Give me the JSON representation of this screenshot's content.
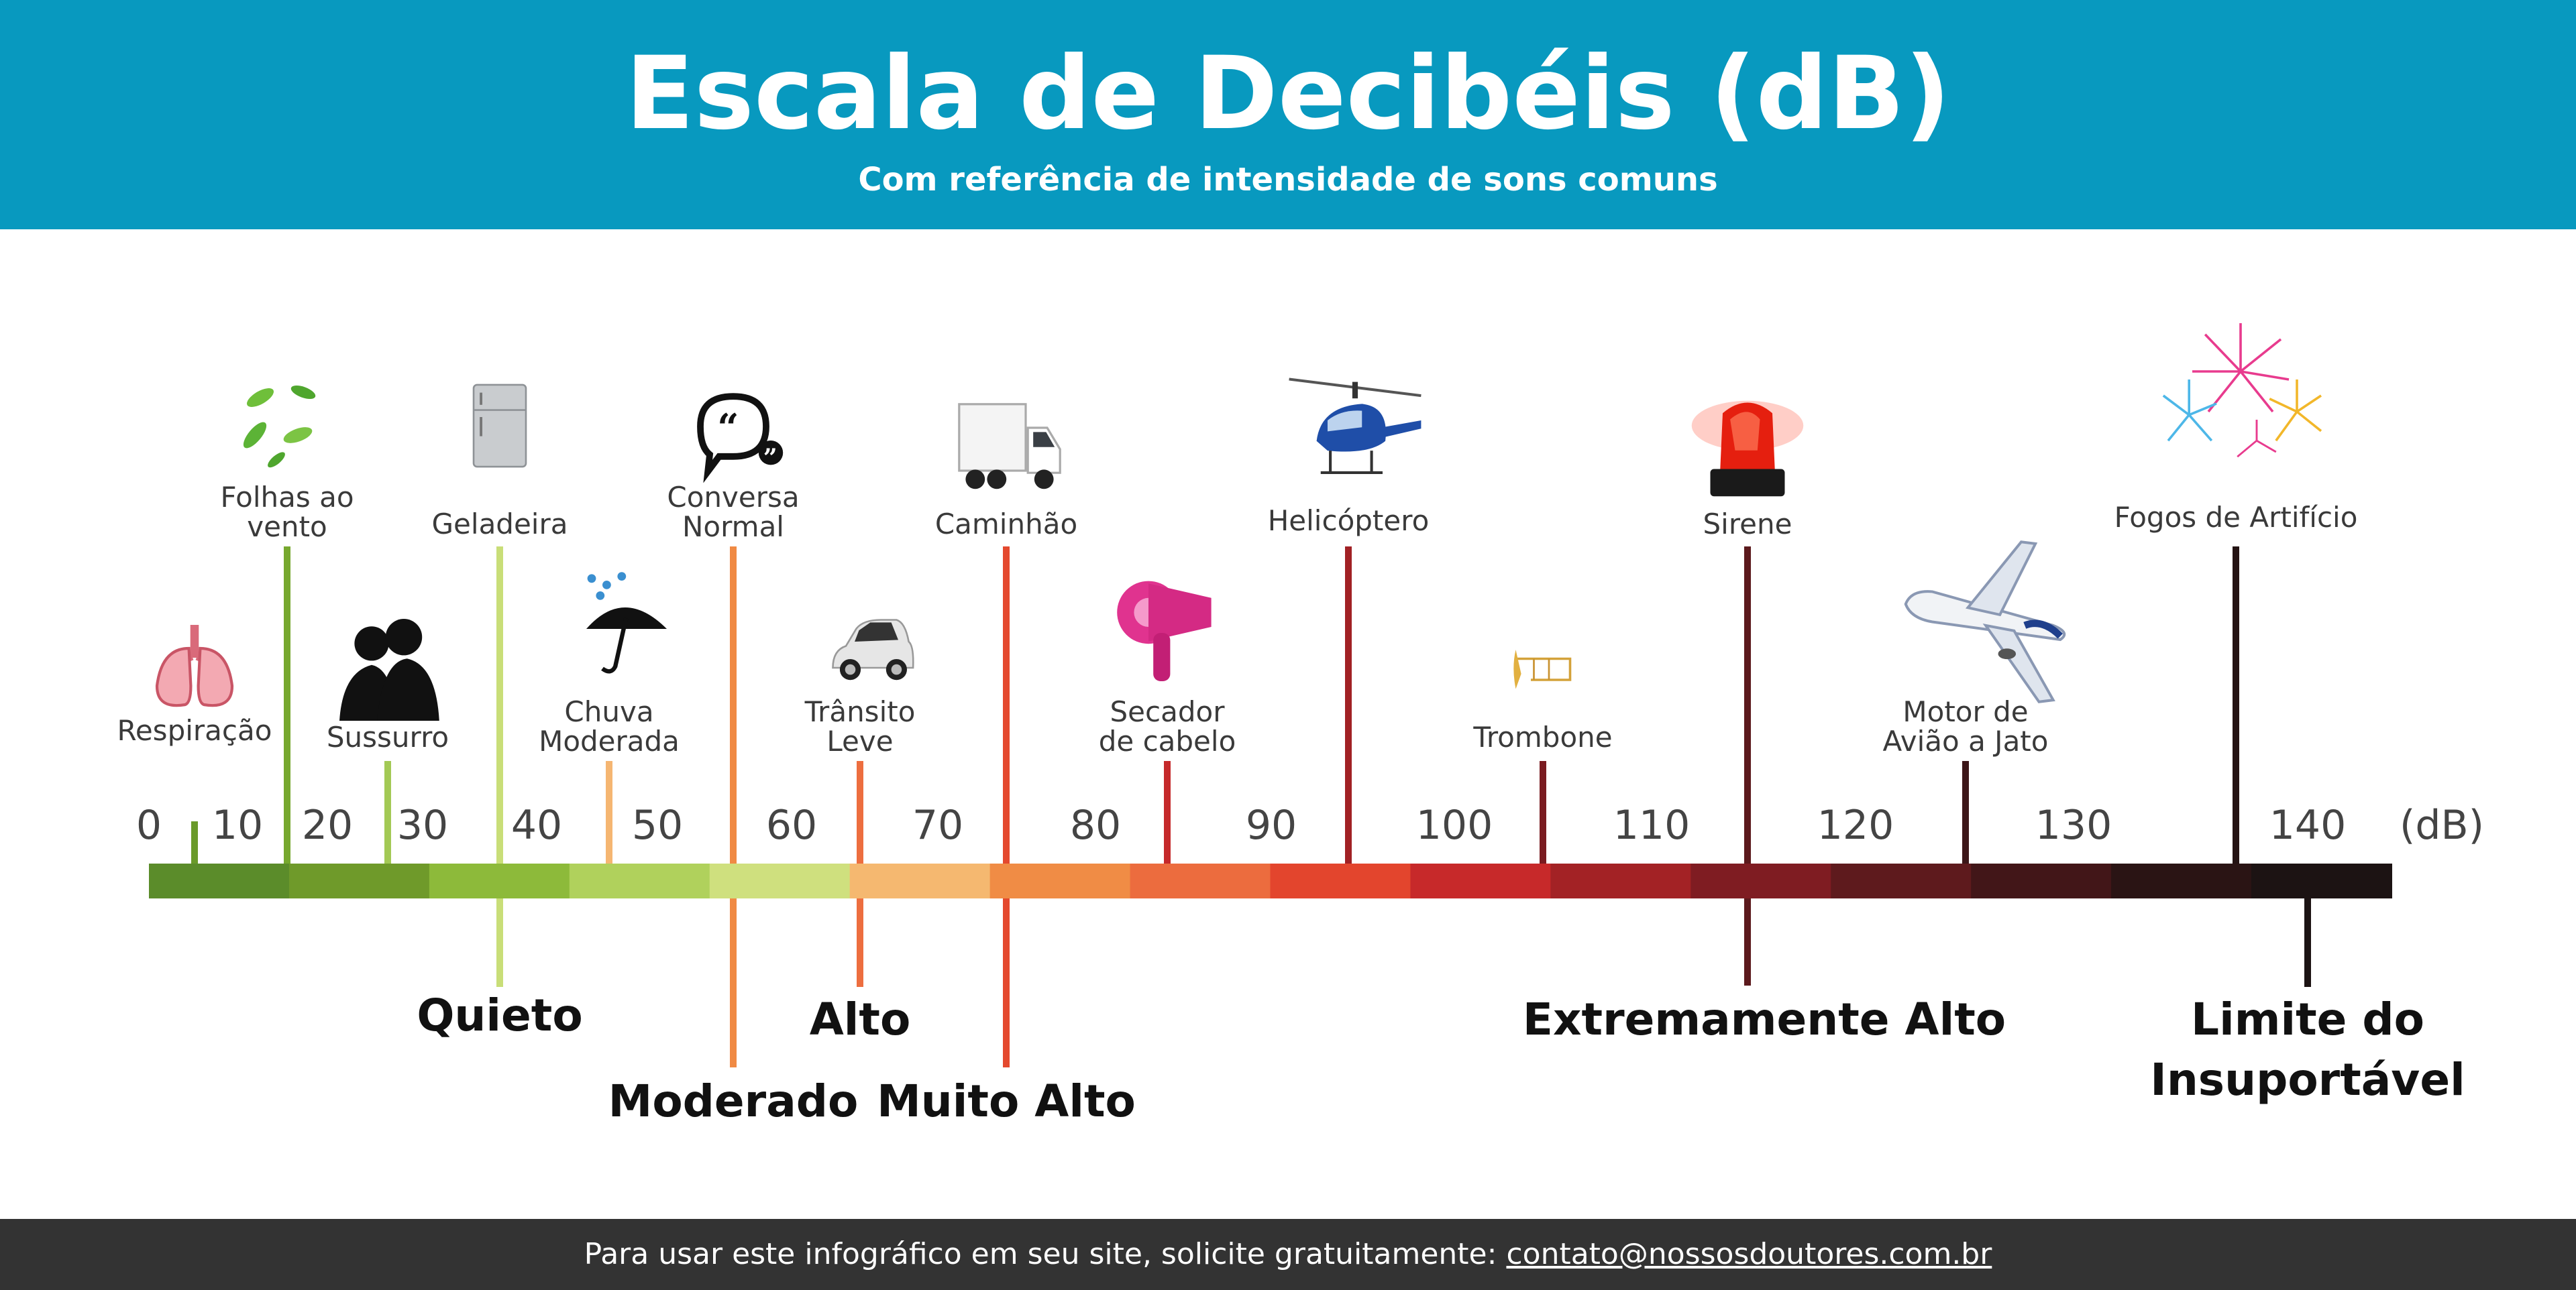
{
  "header": {
    "title": "Escala de Decibéis (dB)",
    "subtitle": "Com referência de intensidade de sons comuns"
  },
  "scale": {
    "unit_label": "(dB)",
    "ticks": [
      "0",
      "10",
      "20",
      "30",
      "40",
      "50",
      "60",
      "70",
      "80",
      "90",
      "100",
      "110",
      "120",
      "130",
      "140"
    ],
    "colors": [
      "#5b8c2a",
      "#6f9a2a",
      "#8dba3a",
      "#b0d15c",
      "#cfe07e",
      "#f5b870",
      "#f08c45",
      "#ec6c3e",
      "#e3452d",
      "#c7292a",
      "#a32225",
      "#7f1c22",
      "#5e1a1d",
      "#421618",
      "#2a1414",
      "#1c1313"
    ]
  },
  "items": [
    {
      "id": "respiracao",
      "lines": [
        "Respiração"
      ],
      "db": 3,
      "icon": "lungs-icon",
      "color": "#6a9a2a"
    },
    {
      "id": "folhas",
      "lines": [
        "Folhas ao",
        "vento"
      ],
      "db": 13,
      "icon": "leaves-icon",
      "color": "#77a82e"
    },
    {
      "id": "sussurro",
      "lines": [
        "Sussurro"
      ],
      "db": 25,
      "icon": "couple-whisper-icon",
      "color": "#a3c955"
    },
    {
      "id": "geladeira",
      "lines": [
        "Geladeira"
      ],
      "db": 38,
      "icon": "refrigerator-icon",
      "color": "#c9de78"
    },
    {
      "id": "chuva",
      "lines": [
        "Chuva",
        "Moderada"
      ],
      "db": 50,
      "icon": "umbrella-rain-icon",
      "color": "#f5b672"
    },
    {
      "id": "conversa",
      "lines": [
        "Conversa",
        "Normal"
      ],
      "db": 60,
      "icon": "speech-bubble-icon",
      "color": "#f08a44"
    },
    {
      "id": "transito",
      "lines": [
        "Trânsito",
        "Leve"
      ],
      "db": 70,
      "icon": "car-icon",
      "color": "#ed6e3f"
    },
    {
      "id": "caminhao",
      "lines": [
        "Caminhão"
      ],
      "db": 80,
      "icon": "truck-icon",
      "color": "#e4492e"
    },
    {
      "id": "secador",
      "lines": [
        "Secador",
        "de cabelo"
      ],
      "db": 90,
      "icon": "hair-dryer-icon",
      "color": "#c5292b"
    },
    {
      "id": "helicoptero",
      "lines": [
        "Helicóptero"
      ],
      "db": 100,
      "icon": "helicopter-icon",
      "color": "#a12125"
    },
    {
      "id": "trombone",
      "lines": [
        "Trombone"
      ],
      "db": 110,
      "icon": "trombone-icon",
      "color": "#7a1b20"
    },
    {
      "id": "sirene",
      "lines": [
        "Sirene"
      ],
      "db": 120,
      "icon": "siren-icon",
      "color": "#5c1a1d"
    },
    {
      "id": "motor",
      "lines": [
        "Motor de",
        "Avião a Jato"
      ],
      "db": 130,
      "icon": "airplane-icon",
      "color": "#3c1618"
    },
    {
      "id": "fogos",
      "lines": [
        "Fogos de Artifício"
      ],
      "db": 140,
      "icon": "fireworks-icon",
      "color": "#241313"
    }
  ],
  "categories": [
    {
      "id": "quieto",
      "lines": [
        "Quieto"
      ],
      "db": 38,
      "color": "#c9de78"
    },
    {
      "id": "moderado",
      "lines": [
        "Moderado"
      ],
      "db": 60,
      "color": "#f08a44"
    },
    {
      "id": "alto",
      "lines": [
        "Alto"
      ],
      "db": 70,
      "color": "#ed6e3f"
    },
    {
      "id": "muito-alto",
      "lines": [
        "Muito Alto"
      ],
      "db": 80,
      "color": "#e4492e"
    },
    {
      "id": "extremamente-alto",
      "lines": [
        "Extremamente Alto"
      ],
      "db": 120,
      "color": "#5c1a1d"
    },
    {
      "id": "limite",
      "lines": [
        "Limite do",
        "Insuportável"
      ],
      "db": 145,
      "color": "#1c1313"
    }
  ],
  "footer": {
    "text": "Para usar este infográfico em seu site, solicite gratuitamente: ",
    "email": "contato@nossosdoutores.com.br"
  }
}
